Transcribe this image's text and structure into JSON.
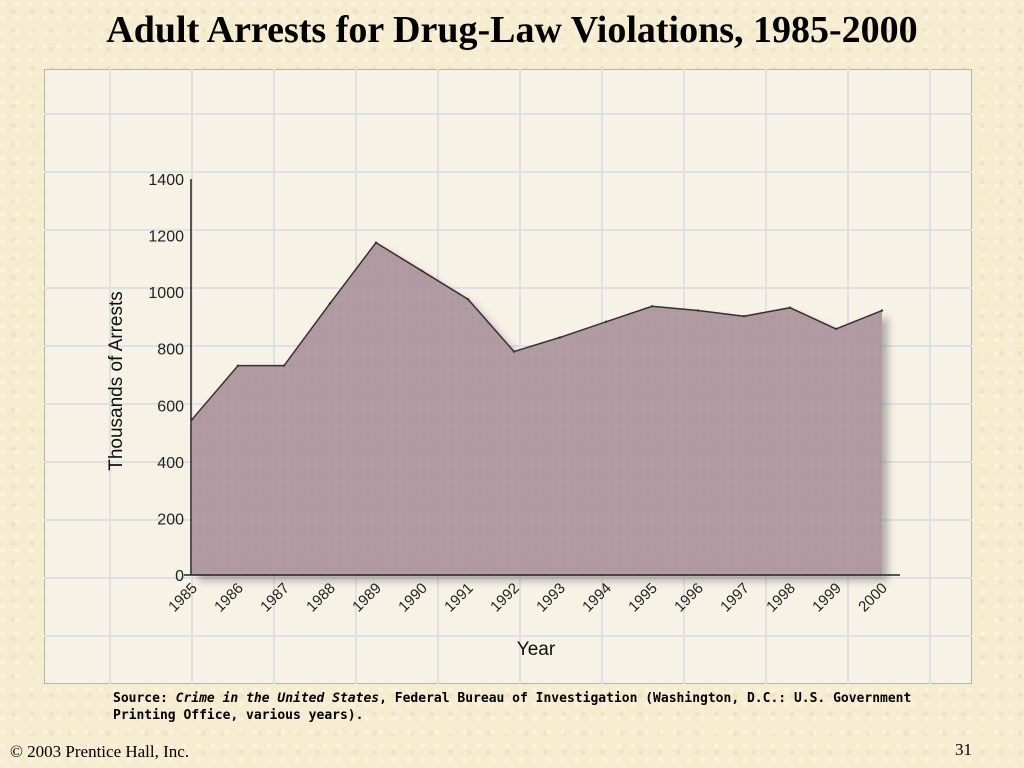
{
  "title": "Adult Arrests for Drug-Law Violations, 1985-2000",
  "source": {
    "prefix": "Source: ",
    "work": "Crime in the United States",
    "rest": ", Federal Bureau of Investigation (Washington, D.C.: U.S. Government Printing Office, various years)."
  },
  "footer": {
    "copyright": "© 2003  Prentice Hall, Inc.",
    "page_number": "31"
  },
  "chart_data": {
    "type": "area",
    "title": "",
    "xlabel": "Year",
    "ylabel": "Thousands of Arrests",
    "categories": [
      "1985",
      "1986",
      "1987",
      "1988",
      "1989",
      "1990",
      "1991",
      "1992",
      "1993",
      "1994",
      "1995",
      "1996",
      "1997",
      "1998",
      "1999",
      "2000"
    ],
    "values": [
      550,
      740,
      740,
      960,
      1175,
      1075,
      975,
      790,
      840,
      895,
      950,
      935,
      915,
      945,
      870,
      935
    ],
    "ylim": [
      0,
      1400
    ],
    "yticks": [
      0,
      200,
      400,
      600,
      800,
      1000,
      1200,
      1400
    ],
    "fill_color": "#b29aa3",
    "outline_color": "#3a2f33",
    "grid": true,
    "legend": "none"
  }
}
